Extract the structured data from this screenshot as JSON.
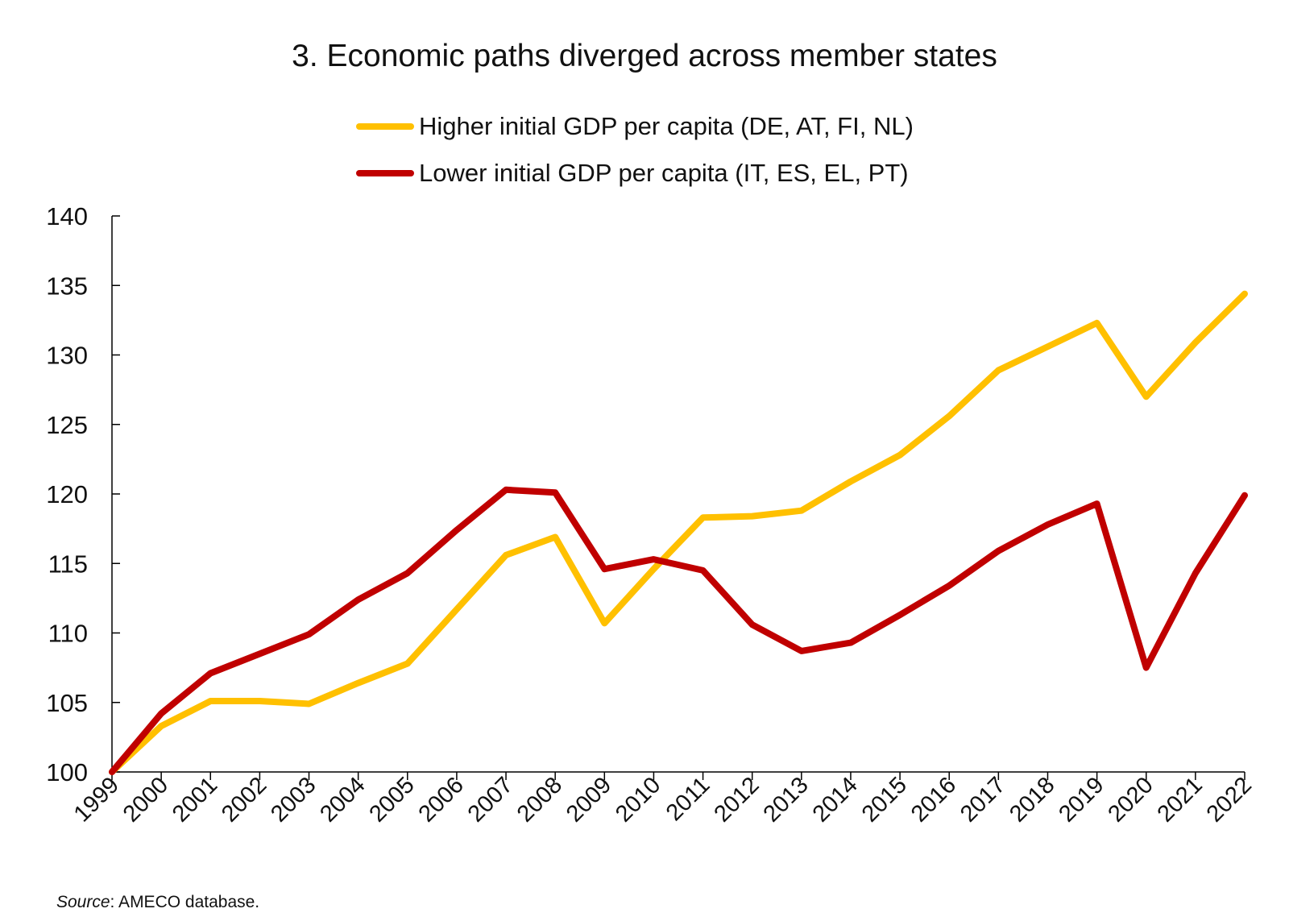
{
  "colors": {
    "higher": "#FFC000",
    "lower": "#C00000",
    "axis": "#000000"
  },
  "source": {
    "label": "Source",
    "text": ": AMECO database."
  },
  "chart_data": {
    "type": "line",
    "title": "3. Economic paths diverged across member states",
    "xlabel": "",
    "ylabel": "",
    "ylim": [
      100,
      140
    ],
    "yticks": [
      100,
      105,
      110,
      115,
      120,
      125,
      130,
      135,
      140
    ],
    "grid": false,
    "legend_position": "top-center",
    "categories": [
      "1999",
      "2000",
      "2001",
      "2002",
      "2003",
      "2004",
      "2005",
      "2006",
      "2007",
      "2008",
      "2009",
      "2010",
      "2011",
      "2012",
      "2013",
      "2014",
      "2015",
      "2016",
      "2017",
      "2018",
      "2019",
      "2020",
      "2021",
      "2022"
    ],
    "series": [
      {
        "name": "Higher initial GDP per capita (DE, AT, FI, NL)",
        "color": "#FFC000",
        "values": [
          100,
          103.3,
          105.1,
          105.1,
          104.9,
          106.4,
          107.8,
          111.7,
          115.6,
          116.9,
          110.7,
          114.6,
          118.3,
          118.4,
          118.8,
          120.9,
          122.8,
          125.6,
          128.9,
          130.6,
          132.3,
          127.0,
          130.9,
          134.4
        ]
      },
      {
        "name": "Lower initial GDP per capita (IT, ES, EL, PT)",
        "color": "#C00000",
        "values": [
          100,
          104.2,
          107.1,
          108.5,
          109.9,
          112.4,
          114.3,
          117.4,
          120.3,
          120.1,
          114.6,
          115.3,
          114.5,
          110.6,
          108.7,
          109.3,
          111.3,
          113.4,
          115.9,
          117.8,
          119.3,
          107.5,
          114.3,
          119.9
        ]
      }
    ]
  }
}
